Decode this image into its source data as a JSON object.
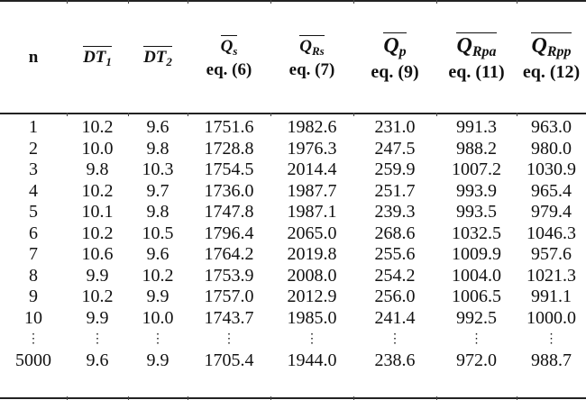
{
  "table": {
    "columns": [
      {
        "id": "n",
        "label": "n",
        "symbol": "",
        "sub": "",
        "eq": ""
      },
      {
        "id": "dt1",
        "label": "DT_1 (mean)",
        "symbol": "DT",
        "sub": "1",
        "eq": ""
      },
      {
        "id": "dt2",
        "label": "DT_2 (mean)",
        "symbol": "DT",
        "sub": "2",
        "eq": ""
      },
      {
        "id": "qs",
        "label": "Q_s (mean)",
        "symbol": "Q",
        "sub": "s",
        "eq": "eq. (6)"
      },
      {
        "id": "qrs",
        "label": "Q_Rs (mean)",
        "symbol": "Q",
        "sub": "Rs",
        "eq": "eq. (7)"
      },
      {
        "id": "qp",
        "label": "Q_p (mean)",
        "symbol": "Q",
        "sub": "p",
        "eq": "eq. (9)"
      },
      {
        "id": "qrpa",
        "label": "Q_Rpa (mean)",
        "symbol": "Q",
        "sub": "Rpa",
        "eq": "eq. (11)"
      },
      {
        "id": "qrpp",
        "label": "Q_Rpp (mean)",
        "symbol": "Q",
        "sub": "Rpp",
        "eq": "eq. (12)"
      }
    ],
    "rows": [
      [
        "1",
        "10.2",
        "9.6",
        "1751.6",
        "1982.6",
        "231.0",
        "991.3",
        "963.0"
      ],
      [
        "2",
        "10.0",
        "9.8",
        "1728.8",
        "1976.3",
        "247.5",
        "988.2",
        "980.0"
      ],
      [
        "3",
        "9.8",
        "10.3",
        "1754.5",
        "2014.4",
        "259.9",
        "1007.2",
        "1030.9"
      ],
      [
        "4",
        "10.2",
        "9.7",
        "1736.0",
        "1987.7",
        "251.7",
        "993.9",
        "965.4"
      ],
      [
        "5",
        "10.1",
        "9.8",
        "1747.8",
        "1987.1",
        "239.3",
        "993.5",
        "979.4"
      ],
      [
        "6",
        "10.2",
        "10.5",
        "1796.4",
        "2065.0",
        "268.6",
        "1032.5",
        "1046.3"
      ],
      [
        "7",
        "10.6",
        "9.6",
        "1764.2",
        "2019.8",
        "255.6",
        "1009.9",
        "957.6"
      ],
      [
        "8",
        "9.9",
        "10.2",
        "1753.9",
        "2008.0",
        "254.2",
        "1004.0",
        "1021.3"
      ],
      [
        "9",
        "10.2",
        "9.9",
        "1757.0",
        "2012.9",
        "256.0",
        "1006.5",
        "991.1"
      ],
      [
        "10",
        "9.9",
        "10.0",
        "1743.7",
        "1985.0",
        "241.4",
        "992.5",
        "1000.0"
      ],
      [
        "⋮",
        "⋮",
        "⋮",
        "⋮",
        "⋮",
        "⋮",
        "⋮",
        "⋮"
      ],
      [
        "5000",
        "9.6",
        "9.9",
        "1705.4",
        "1944.0",
        "238.6",
        "972.0",
        "988.7"
      ]
    ]
  }
}
